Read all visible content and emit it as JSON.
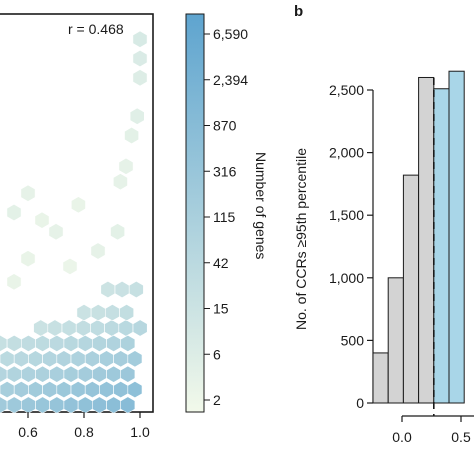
{
  "panel_b_letter": "b",
  "chart_data": [
    {
      "type": "heatmap",
      "subtype": "hexbin",
      "annotation": "r = 0.468",
      "x_ticks": [
        "0.6",
        "0.8",
        "1.0"
      ],
      "xlim": [
        0.5,
        1.02
      ],
      "colorbar": {
        "label": "Number of genes",
        "ticks": [
          "6,590",
          "2,394",
          "870",
          "316",
          "115",
          "42",
          "15",
          "6",
          "2"
        ],
        "scale": "log",
        "color_low": "#f2f9ea",
        "color_high": "#5ea4cf"
      },
      "rows": [
        {
          "y": 0.0,
          "x_start": 0.5,
          "x_end": 1.0,
          "level": 0.55
        },
        {
          "y": 0.04,
          "x_start": 0.5,
          "x_end": 1.0,
          "level": 0.5
        },
        {
          "y": 0.08,
          "x_start": 0.5,
          "x_end": 1.0,
          "level": 0.42
        },
        {
          "y": 0.12,
          "x_start": 0.5,
          "x_end": 1.0,
          "level": 0.36
        },
        {
          "y": 0.16,
          "x_start": 0.5,
          "x_end": 1.0,
          "level": 0.3
        },
        {
          "y": 0.2,
          "x_start": 0.62,
          "x_end": 1.0,
          "level": 0.22
        },
        {
          "y": 0.24,
          "x_start": 0.8,
          "x_end": 1.0,
          "level": 0.16
        },
        {
          "y": 0.3,
          "x_start": 0.86,
          "x_end": 1.0,
          "level": 0.12
        }
      ],
      "scattered_points": [
        {
          "x": 1.0,
          "y": 0.95,
          "level": 0.18
        },
        {
          "x": 1.0,
          "y": 0.9,
          "level": 0.16
        },
        {
          "x": 1.0,
          "y": 0.85,
          "level": 0.14
        },
        {
          "x": 0.99,
          "y": 0.75,
          "level": 0.12
        },
        {
          "x": 0.97,
          "y": 0.7,
          "level": 0.1
        },
        {
          "x": 0.95,
          "y": 0.62,
          "level": 0.08
        },
        {
          "x": 0.93,
          "y": 0.58,
          "level": 0.08
        },
        {
          "x": 0.55,
          "y": 0.5,
          "level": 0.1
        },
        {
          "x": 0.6,
          "y": 0.55,
          "level": 0.08
        },
        {
          "x": 0.65,
          "y": 0.48,
          "level": 0.06
        },
        {
          "x": 0.7,
          "y": 0.45,
          "level": 0.08
        },
        {
          "x": 0.78,
          "y": 0.52,
          "level": 0.06
        },
        {
          "x": 0.85,
          "y": 0.4,
          "level": 0.08
        },
        {
          "x": 0.92,
          "y": 0.45,
          "level": 0.1
        },
        {
          "x": 0.6,
          "y": 0.38,
          "level": 0.06
        },
        {
          "x": 0.75,
          "y": 0.36,
          "level": 0.05
        },
        {
          "x": 0.55,
          "y": 0.32,
          "level": 0.06
        }
      ]
    },
    {
      "type": "bar",
      "subtype": "histogram",
      "ylabel": "No. of CCRs ≥95th percentile",
      "y_ticks": [
        "0",
        "500",
        "1,000",
        "1,500",
        "2,000",
        "2,500"
      ],
      "ylim": [
        0,
        2700
      ],
      "x_ticks": [
        "0.0",
        "0.5"
      ],
      "xlim": [
        0,
        0.6
      ],
      "bin_width": 0.05,
      "threshold": 0.4,
      "bins": [
        {
          "x": 0.0,
          "value": 400
        },
        {
          "x": 0.05,
          "value": 1000
        },
        {
          "x": 0.1,
          "value": 1820
        },
        {
          "x": 0.15,
          "value": 2600
        },
        {
          "x": 0.2,
          "value": 2510
        },
        {
          "x": 0.25,
          "value": 2650
        }
      ],
      "colors": {
        "below": "#d3d3d3",
        "above": "#a9d6e8"
      }
    }
  ]
}
